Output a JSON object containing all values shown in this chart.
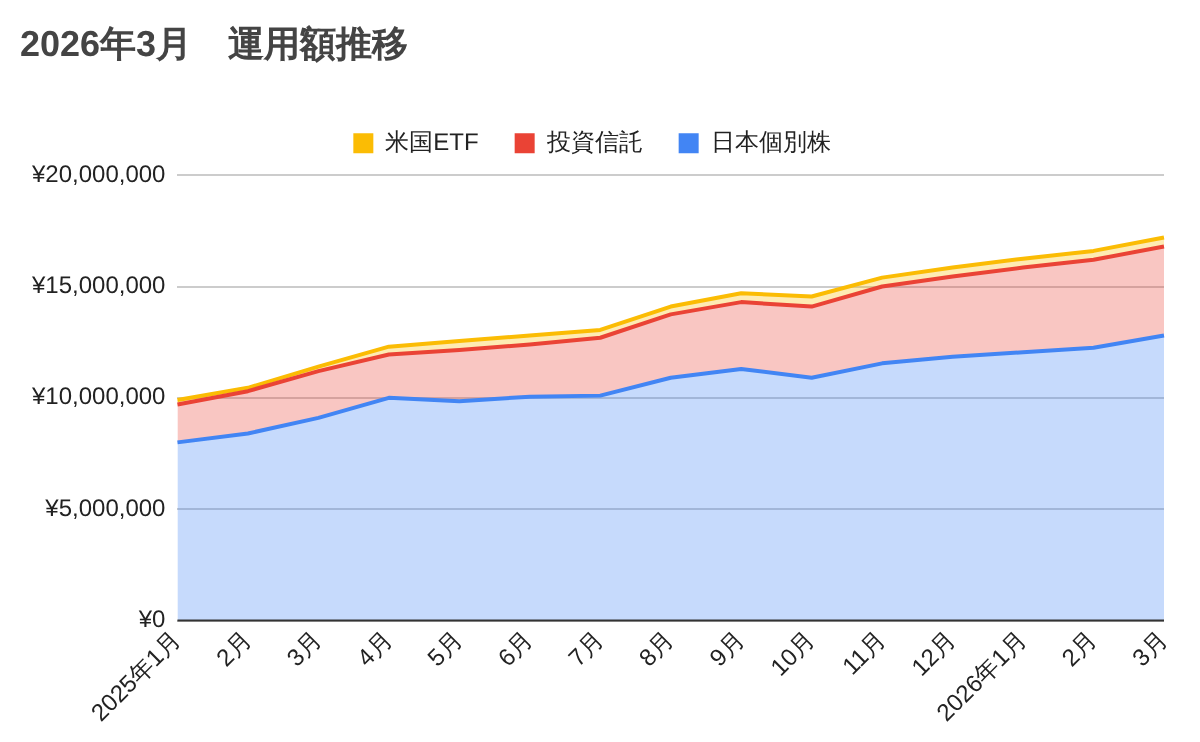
{
  "chart_data": {
    "type": "area",
    "title": "2026年3月　運用額推移",
    "stacked": true,
    "legend": "top",
    "grid": "y",
    "categories": [
      "2025年1月",
      "2月",
      "3月",
      "4月",
      "5月",
      "6月",
      "7月",
      "8月",
      "9月",
      "10月",
      "11月",
      "12月",
      "2026年1月",
      "2月",
      "3月"
    ],
    "ylim": [
      0,
      20000000
    ],
    "yticks": [
      {
        "value": 0,
        "label": "¥0"
      },
      {
        "value": 5000000,
        "label": "¥5,000,000"
      },
      {
        "value": 10000000,
        "label": "¥10,000,000"
      },
      {
        "value": 15000000,
        "label": "¥15,000,000"
      },
      {
        "value": 20000000,
        "label": "¥20,000,000"
      }
    ],
    "series": [
      {
        "name": "日本個別株",
        "color": "#4285f4",
        "values": [
          8000000,
          8400000,
          9100000,
          10000000,
          9850000,
          10050000,
          10100000,
          10900000,
          11300000,
          10900000,
          11550000,
          11850000,
          12050000,
          12250000,
          12800000
        ]
      },
      {
        "name": "投資信託",
        "color": "#ea4335",
        "values": [
          1700000,
          1900000,
          2100000,
          1950000,
          2300000,
          2350000,
          2600000,
          2850000,
          3000000,
          3200000,
          3450000,
          3600000,
          3800000,
          3950000,
          4000000
        ]
      },
      {
        "name": "米国ETF",
        "color": "#fbbc04",
        "values": [
          200000,
          150000,
          200000,
          350000,
          400000,
          400000,
          350000,
          350000,
          400000,
          450000,
          400000,
          400000,
          400000,
          400000,
          400000
        ]
      }
    ]
  }
}
